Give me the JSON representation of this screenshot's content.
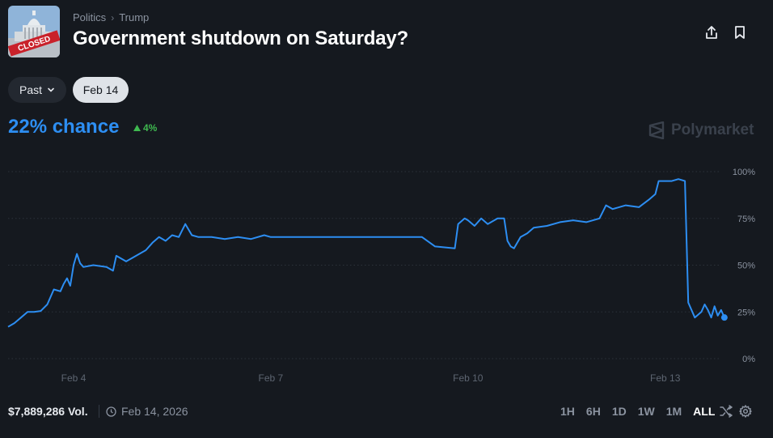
{
  "header": {
    "breadcrumb": [
      "Politics",
      "Trump"
    ],
    "title": "Government shutdown on Saturday?",
    "thumbnail_stamp": "CLOSED"
  },
  "filters": {
    "range_label": "Past",
    "date_label": "Feb 14"
  },
  "summary": {
    "chance": "22% chance",
    "change": "4%",
    "change_color": "#3fb950",
    "brand": "Polymarket"
  },
  "footer": {
    "volume": "$7,889,286 Vol.",
    "date": "Feb 14, 2026",
    "ranges": [
      "1H",
      "6H",
      "1D",
      "1W",
      "1M",
      "ALL"
    ],
    "active_range": "ALL"
  },
  "chart_data": {
    "type": "line",
    "color": "#2d8ef2",
    "x_tick_labels": [
      "Feb 4",
      "Feb 7",
      "Feb 10",
      "Feb 13"
    ],
    "y_tick_labels": [
      "100%",
      "75%",
      "50%",
      "25%",
      "0%"
    ],
    "ylim": [
      0,
      100
    ],
    "grid": true,
    "series": [
      {
        "points": [
          [
            3.0,
            17
          ],
          [
            3.1,
            19
          ],
          [
            3.2,
            22
          ],
          [
            3.3,
            25
          ],
          [
            3.4,
            25
          ],
          [
            3.5,
            25.5
          ],
          [
            3.6,
            29
          ],
          [
            3.7,
            37
          ],
          [
            3.8,
            36
          ],
          [
            3.85,
            40
          ],
          [
            3.9,
            43
          ],
          [
            3.95,
            39
          ],
          [
            4.0,
            50
          ],
          [
            4.05,
            56
          ],
          [
            4.1,
            51
          ],
          [
            4.15,
            49
          ],
          [
            4.3,
            50
          ],
          [
            4.5,
            49
          ],
          [
            4.6,
            47
          ],
          [
            4.65,
            55
          ],
          [
            4.8,
            52
          ],
          [
            4.9,
            54
          ],
          [
            5.1,
            58
          ],
          [
            5.2,
            62
          ],
          [
            5.3,
            65
          ],
          [
            5.4,
            63
          ],
          [
            5.5,
            66
          ],
          [
            5.6,
            65
          ],
          [
            5.7,
            72
          ],
          [
            5.8,
            66
          ],
          [
            5.9,
            65
          ],
          [
            6.1,
            65
          ],
          [
            6.3,
            64
          ],
          [
            6.5,
            65
          ],
          [
            6.7,
            64
          ],
          [
            6.9,
            66
          ],
          [
            7.0,
            65
          ],
          [
            7.3,
            65
          ],
          [
            7.6,
            65
          ],
          [
            7.9,
            65
          ],
          [
            8.1,
            65
          ],
          [
            8.4,
            65
          ],
          [
            8.6,
            65
          ],
          [
            8.8,
            65
          ],
          [
            9.0,
            65
          ],
          [
            9.3,
            65
          ],
          [
            9.5,
            60
          ],
          [
            9.8,
            59
          ],
          [
            9.85,
            72
          ],
          [
            9.95,
            75
          ],
          [
            10.0,
            74
          ],
          [
            10.1,
            71
          ],
          [
            10.2,
            75
          ],
          [
            10.3,
            72
          ],
          [
            10.45,
            75
          ],
          [
            10.55,
            75
          ],
          [
            10.6,
            63
          ],
          [
            10.65,
            60
          ],
          [
            10.7,
            59
          ],
          [
            10.8,
            65
          ],
          [
            10.9,
            67
          ],
          [
            11.0,
            70
          ],
          [
            11.2,
            71
          ],
          [
            11.4,
            73
          ],
          [
            11.6,
            74
          ],
          [
            11.8,
            73
          ],
          [
            12.0,
            75
          ],
          [
            12.1,
            82
          ],
          [
            12.2,
            80
          ],
          [
            12.4,
            82
          ],
          [
            12.6,
            81
          ],
          [
            12.75,
            85
          ],
          [
            12.85,
            88
          ],
          [
            12.9,
            95
          ],
          [
            13.1,
            95
          ],
          [
            13.2,
            96
          ],
          [
            13.3,
            95
          ],
          [
            13.35,
            30
          ],
          [
            13.45,
            22
          ],
          [
            13.55,
            25
          ],
          [
            13.6,
            29
          ],
          [
            13.65,
            26
          ],
          [
            13.7,
            22
          ],
          [
            13.75,
            28
          ],
          [
            13.8,
            23
          ],
          [
            13.85,
            26
          ],
          [
            13.9,
            22
          ]
        ]
      }
    ]
  }
}
